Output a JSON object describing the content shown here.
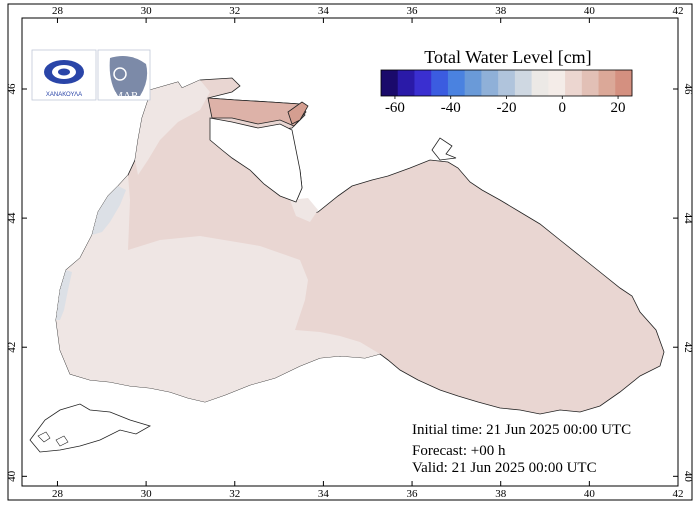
{
  "map": {
    "variable_title": "Total Water Level [cm]",
    "lon_ticks": [
      "28",
      "30",
      "32",
      "34",
      "36",
      "38",
      "40",
      "42"
    ],
    "lat_ticks": [
      "40",
      "42",
      "44",
      "46"
    ],
    "colorbar": {
      "tick_labels": [
        "-60",
        "-40",
        "-20",
        "0",
        "20"
      ],
      "colors": [
        "#1a0a6b",
        "#2a1aa8",
        "#3a2fd0",
        "#3b5ce0",
        "#4a82e0",
        "#6a9ad8",
        "#8fb0d8",
        "#b0c4dc",
        "#cfd8e2",
        "#ece9e6",
        "#f4ece8",
        "#ecd6d0",
        "#e2c0b6",
        "#dba898",
        "#d49080"
      ]
    },
    "colors": {
      "sea_dominant": "#e9d6d2",
      "sea_light": "#efe6e4",
      "sea_azov": "#ddb2a8",
      "sea_coastal_cool": "#dce0e6",
      "land": "#ffffff"
    }
  },
  "logos": {
    "left_text": "ΧΑΝΑΚΟΥΛΑ",
    "right_text": "IMAR"
  },
  "info": {
    "initial_time": "Initial time: 21 Jun 2025 00:00 UTC",
    "forecast": "Forecast: +00 h",
    "valid": "Valid: 21 Jun 2025 00:00 UTC"
  }
}
